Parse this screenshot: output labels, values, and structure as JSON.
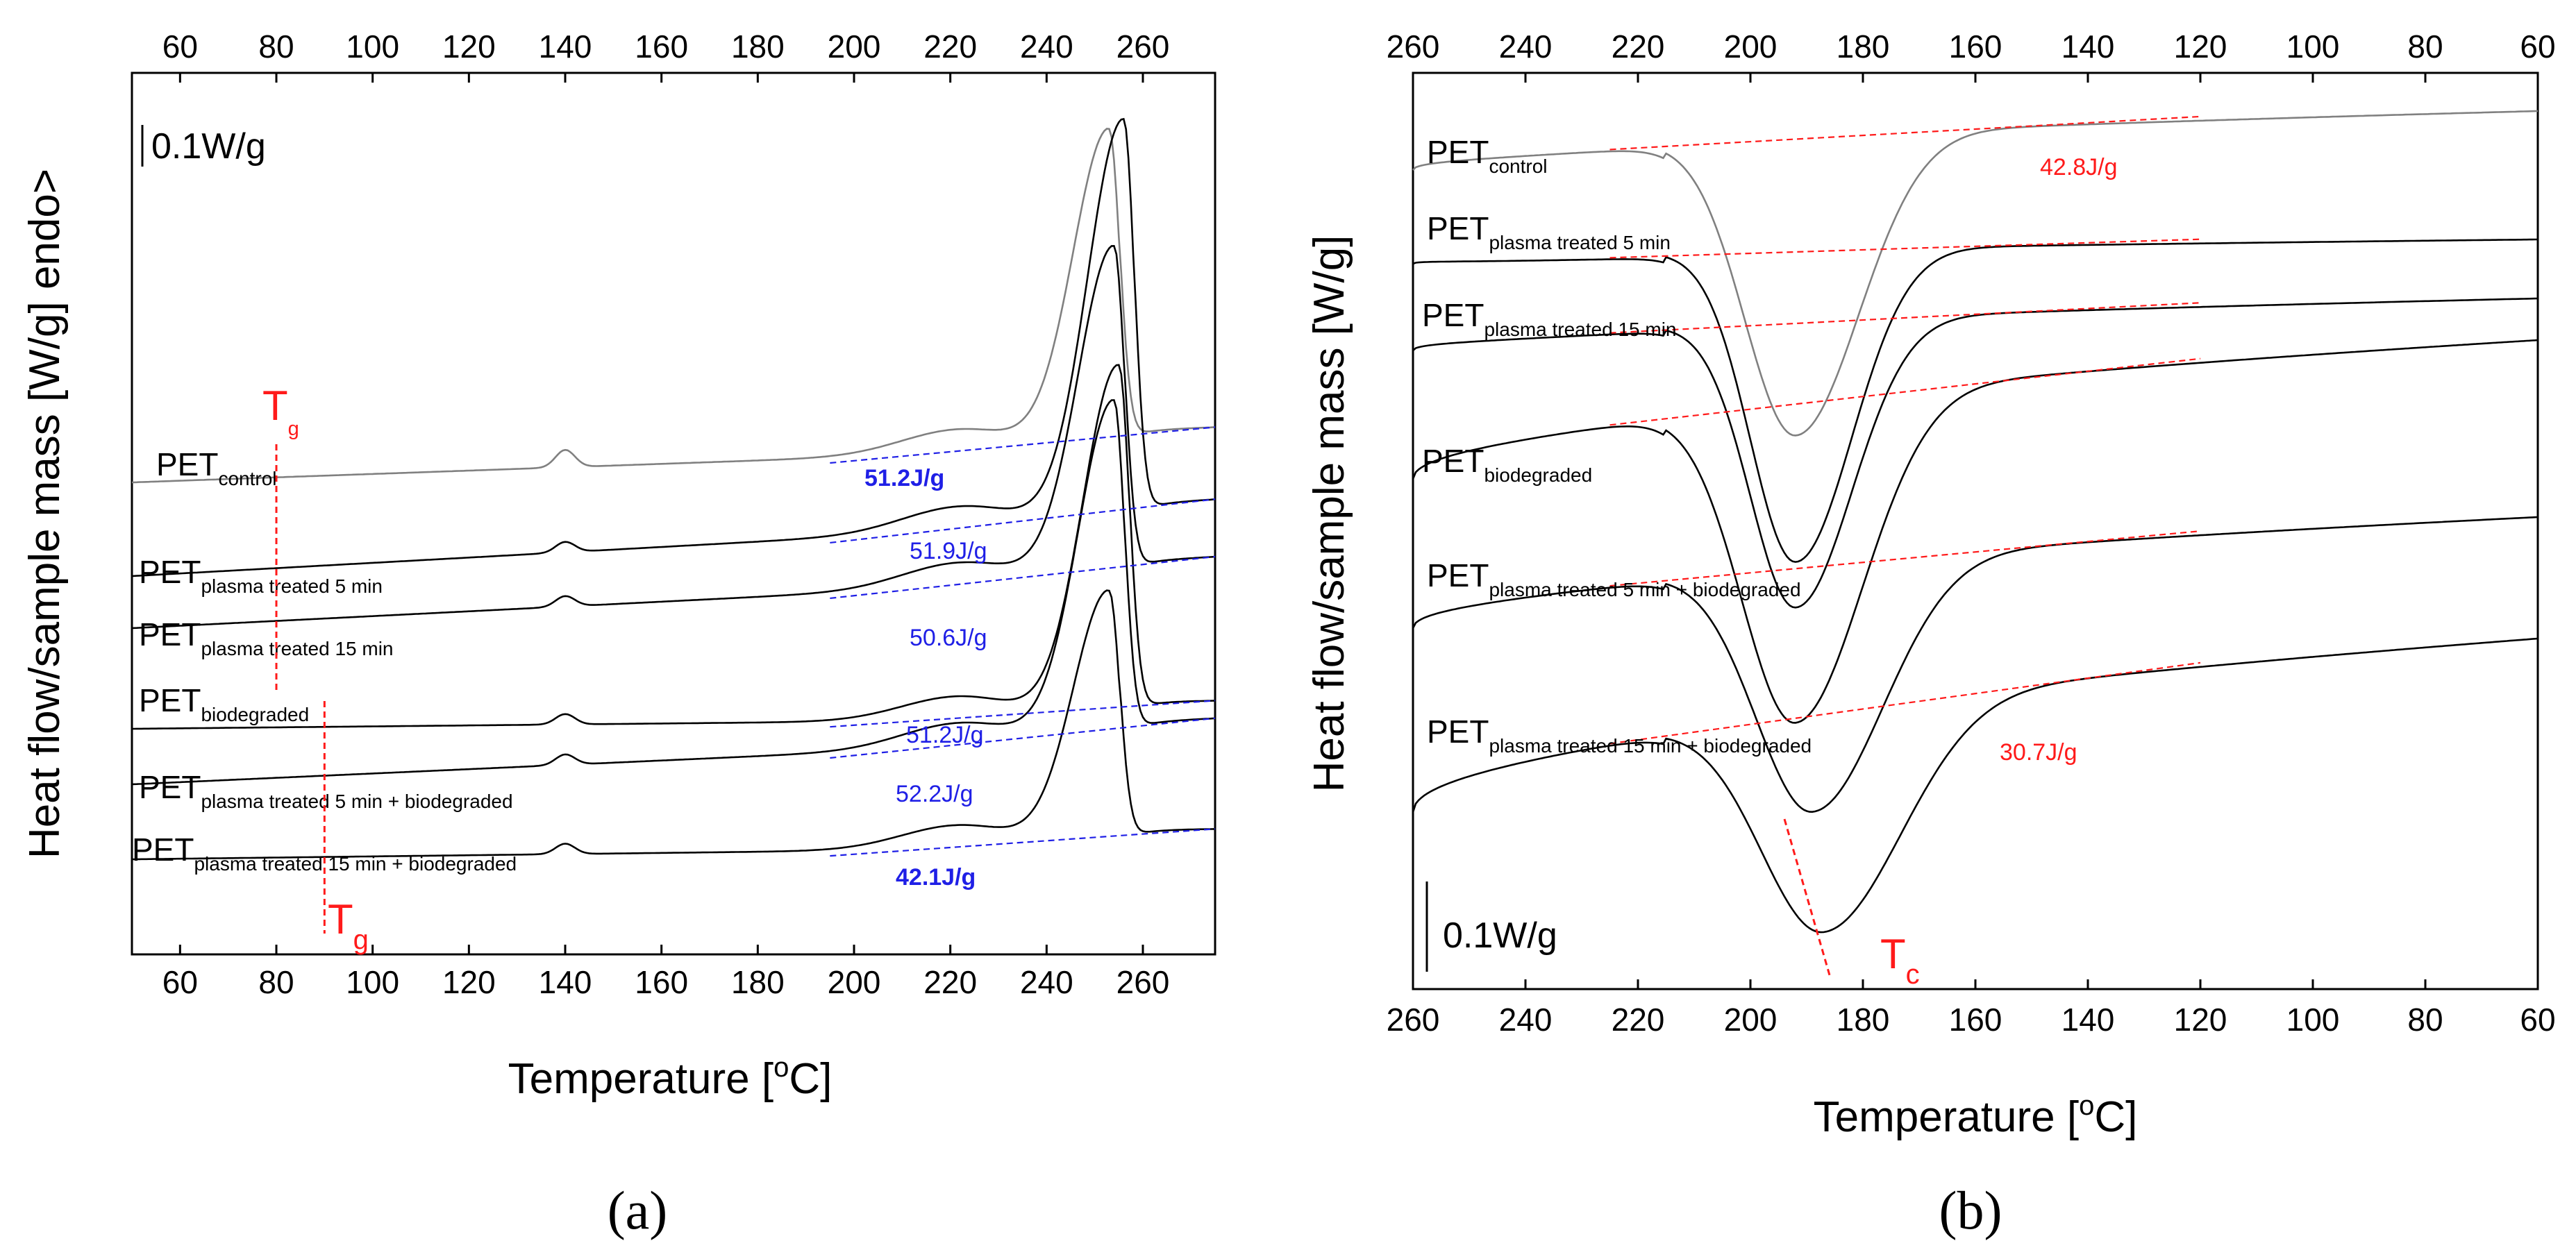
{
  "chart_data": [
    {
      "panel": "(a)",
      "type": "line",
      "description_role": "DSC heating thermograms (melting endotherms)",
      "xlabel": "Temperature [oC]",
      "xlabel_main": "Temperature [",
      "xlabel_sup": "o",
      "xlabel_end": "C]",
      "ylabel": "Heat flow/sample mass [W/g]  endo>",
      "xlim": [
        50,
        275
      ],
      "xticks": [
        60,
        80,
        100,
        120,
        140,
        160,
        180,
        200,
        220,
        240,
        260
      ],
      "scale_bar": "0.1W/g",
      "tg_label": "T",
      "tg_sub": "g",
      "tg_values": [
        80,
        90
      ],
      "baseline_color": "#1f1fe6",
      "series": [
        {
          "name": "PETcontrol",
          "base": "PET",
          "sub": "control",
          "color": "#808080",
          "peak_T": 253,
          "peak_height": 4.6,
          "enthalpy": "51.2J/g",
          "bold": true
        },
        {
          "name": "PETplasma treated 5 min",
          "base": "PET",
          "sub": "plasma treated 5 min",
          "color": "#000000",
          "peak_T": 256,
          "peak_height": 5.8,
          "enthalpy": "51.9J/g",
          "bold": false
        },
        {
          "name": "PETplasma treated 15 min",
          "base": "PET",
          "sub": "plasma treated 15 min",
          "color": "#000000",
          "peak_T": 254,
          "peak_height": 4.8,
          "enthalpy": "50.6J/g",
          "bold": false
        },
        {
          "name": "PETbiodegraded",
          "base": "PET",
          "sub": "biodegraded",
          "color": "#000000",
          "peak_T": 255,
          "peak_height": 5.1,
          "enthalpy": "51.2J/g",
          "bold": false
        },
        {
          "name": "PETplasma treated 5 min + biodegraded",
          "base": "PET",
          "sub": "plasma treated 5 min + biodegraded",
          "color": "#000000",
          "peak_T": 254,
          "peak_height": 4.9,
          "enthalpy": "52.2J/g",
          "bold": false
        },
        {
          "name": "PETplasma treated 15 min + biodegraded",
          "base": "PET",
          "sub": "plasma treated 15 min + biodegraded",
          "color": "#000000",
          "peak_T": 253,
          "peak_height": 3.7,
          "enthalpy": "42.1J/g",
          "bold": true
        }
      ]
    },
    {
      "panel": "(b)",
      "type": "line",
      "description_role": "DSC cooling thermograms (crystallization exotherms)",
      "xlabel": "Temperature [oC]",
      "xlabel_main": "Temperature [",
      "xlabel_sup": "o",
      "xlabel_end": "C]",
      "ylabel": "Heat flow/sample mass [W/g]",
      "xlim": [
        260,
        60
      ],
      "xticks": [
        260,
        240,
        220,
        200,
        180,
        160,
        140,
        120,
        100,
        80,
        60
      ],
      "scale_bar": "0.1W/g",
      "tc_label": "T",
      "tc_sub": "c",
      "baseline_color": "#ff1a1a",
      "enthalpy_labels": [
        "42.8J/g",
        "30.7J/g"
      ],
      "series": [
        {
          "name": "PETcontrol",
          "base": "PET",
          "sub": "control",
          "color": "#808080",
          "peak_T": 192,
          "peak_depth": 2.4
        },
        {
          "name": "PETplasma treated 5 min",
          "base": "PET",
          "sub": "plasma treated 5 min",
          "color": "#000000",
          "peak_T": 192,
          "peak_depth": 2.5
        },
        {
          "name": "PETplasma treated 15 min",
          "base": "PET",
          "sub": "plasma treated 15 min",
          "color": "#000000",
          "peak_T": 192,
          "peak_depth": 2.3
        },
        {
          "name": "PETbiodegraded",
          "base": "PET",
          "sub": "biodegraded",
          "color": "#000000",
          "peak_T": 192,
          "peak_depth": 2.6
        },
        {
          "name": "PETplasma treated 5 min + biodegraded",
          "base": "PET",
          "sub": "plasma treated 5 min + biodegraded",
          "color": "#000000",
          "peak_T": 189,
          "peak_depth": 2.0
        },
        {
          "name": "PETplasma treated 15 min + biodegraded",
          "base": "PET",
          "sub": "plasma treated 15 min + biodegraded",
          "color": "#000000",
          "peak_T": 187,
          "peak_depth": 1.8
        }
      ]
    }
  ]
}
